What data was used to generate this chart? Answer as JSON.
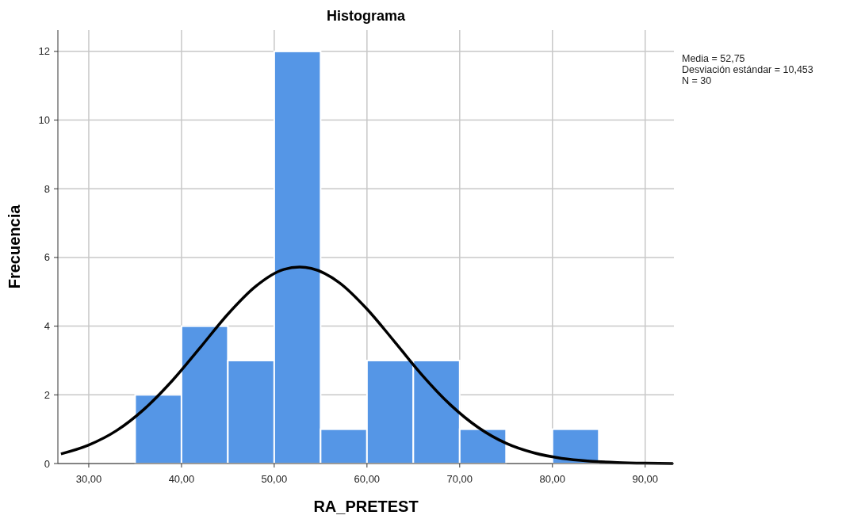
{
  "chart_data": {
    "type": "histogram",
    "title": "Histograma",
    "xlabel": "RA_PRETEST",
    "ylabel": "Frecuencia",
    "annotations": [
      "Media = 52,75",
      "Desviación estándar = 10,453",
      "N = 30"
    ],
    "series": [
      {
        "type": "histogram",
        "color": "#5596e6",
        "bins": [
          35,
          40,
          45,
          50,
          55,
          60,
          65,
          70,
          75,
          80,
          85
        ],
        "values": [
          2,
          4,
          3,
          12,
          1,
          3,
          3,
          1,
          0,
          1
        ]
      },
      {
        "type": "line",
        "color": "#000000",
        "x": [
          27,
          30,
          33,
          36,
          39,
          42,
          45,
          48,
          51,
          52.75,
          54,
          57,
          60,
          63,
          66,
          69,
          72,
          75,
          78,
          81,
          84,
          87,
          90,
          93
        ],
        "values": [
          0.28,
          0.54,
          0.96,
          1.59,
          2.41,
          3.37,
          4.35,
          5.16,
          5.65,
          5.72,
          5.68,
          5.27,
          4.5,
          3.54,
          2.56,
          1.71,
          1.05,
          0.59,
          0.31,
          0.15,
          0.07,
          0.03,
          0.01,
          0
        ]
      }
    ],
    "xlim": [
      26.67,
      93.1
    ],
    "ylim": [
      0,
      12.62
    ],
    "xticks": [
      {
        "value": 30,
        "label": "30,00"
      },
      {
        "value": 40,
        "label": "40,00"
      },
      {
        "value": 50,
        "label": "50,00"
      },
      {
        "value": 60,
        "label": "60,00"
      },
      {
        "value": 70,
        "label": "70,00"
      },
      {
        "value": 80,
        "label": "80,00"
      },
      {
        "value": 90,
        "label": "90,00"
      }
    ],
    "yticks": [
      0,
      2,
      4,
      6,
      8,
      10,
      12
    ],
    "grid": true,
    "legend": false,
    "marker": "none",
    "line_style": "solid"
  }
}
